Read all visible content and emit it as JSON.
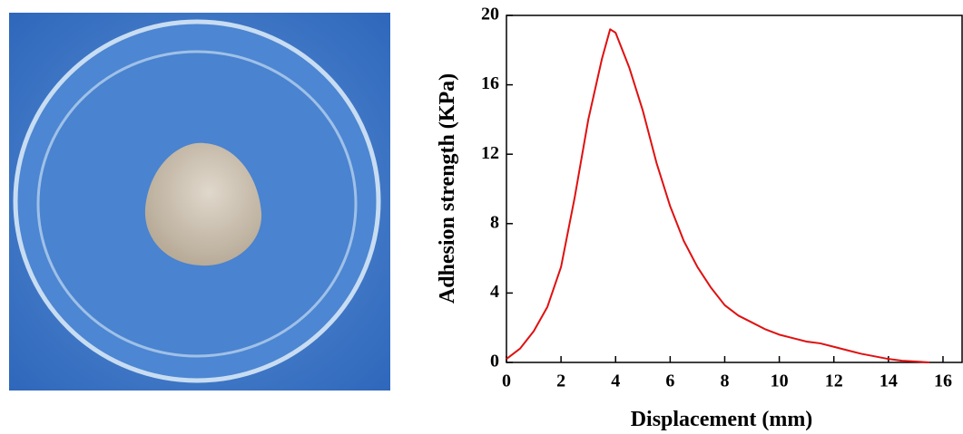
{
  "chart_data": {
    "type": "line",
    "xlabel": "Displacement (mm)",
    "ylabel": "Adhesion strength (KPa)",
    "x": [
      0,
      0.5,
      1,
      1.5,
      2,
      2.5,
      3,
      3.5,
      3.8,
      4,
      4.5,
      5,
      5.5,
      6,
      6.5,
      7,
      7.5,
      8,
      8.5,
      9,
      9.5,
      10,
      10.5,
      11,
      11.5,
      12,
      12.5,
      13,
      13.5,
      14,
      14.5,
      15,
      15.5
    ],
    "values": [
      0.2,
      0.8,
      1.8,
      3.2,
      5.5,
      9.5,
      14,
      17.5,
      19.2,
      19,
      17,
      14.5,
      11.5,
      9,
      7,
      5.5,
      4.3,
      3.3,
      2.7,
      2.3,
      1.9,
      1.6,
      1.4,
      1.2,
      1.1,
      0.9,
      0.7,
      0.5,
      0.35,
      0.2,
      0.1,
      0.05,
      0
    ],
    "color": "#e01010",
    "xlim": [
      0,
      16.7
    ],
    "xticks": [
      0,
      2,
      4,
      6,
      8,
      10,
      12,
      14,
      16
    ],
    "ylim": [
      0,
      20
    ],
    "yticks": [
      0,
      4,
      8,
      12,
      16,
      20
    ]
  }
}
